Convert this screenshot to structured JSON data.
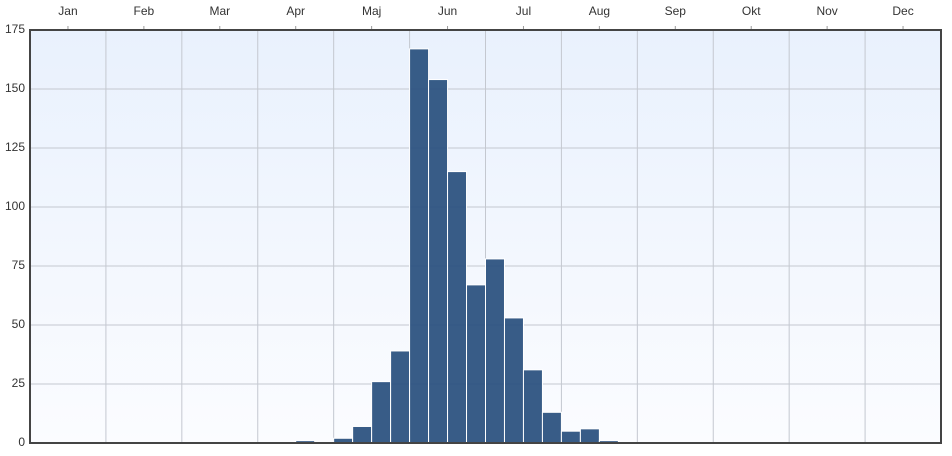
{
  "chart_data": {
    "type": "bar",
    "months": [
      "Jan",
      "Feb",
      "Mar",
      "Apr",
      "Maj",
      "Jun",
      "Jul",
      "Aug",
      "Sep",
      "Okt",
      "Nov",
      "Dec"
    ],
    "values": [
      0,
      0,
      0,
      0,
      0,
      0,
      0,
      0,
      0,
      0,
      0,
      0,
      0,
      0,
      1,
      0,
      2,
      7,
      26,
      39,
      167,
      154,
      115,
      67,
      78,
      53,
      31,
      13,
      5,
      6,
      1,
      0,
      0,
      0,
      0,
      0,
      0,
      0,
      0,
      0,
      0,
      0,
      0,
      0,
      0,
      0,
      0,
      0
    ],
    "color": "#2d5381",
    "ylim": [
      0,
      175
    ],
    "yticks": [
      0,
      25,
      50,
      75,
      100,
      125,
      150,
      175
    ],
    "grid": true
  }
}
